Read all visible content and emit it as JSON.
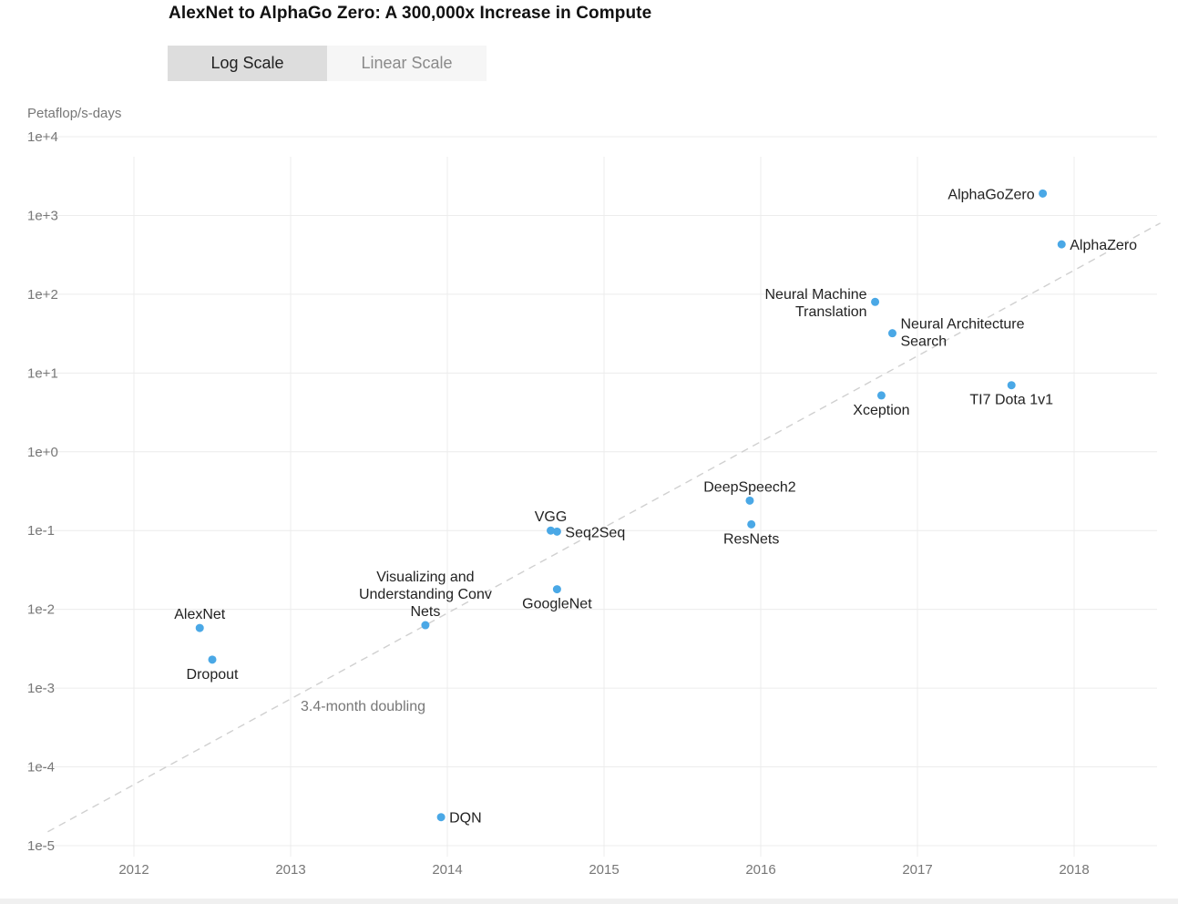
{
  "title": "AlexNet to AlphaGo Zero: A 300,000x Increase in Compute",
  "toggle": {
    "log_label": "Log Scale",
    "linear_label": "Linear Scale",
    "selected": "log"
  },
  "colors": {
    "point": "#4aa8e6",
    "grid": "#ececec",
    "trend": "#d0d0d0"
  },
  "chart_data": {
    "type": "scatter",
    "title": "AlexNet to AlphaGo Zero: A 300,000x Increase in Compute",
    "ylabel": "Petaflop/s-days",
    "xlabel": "",
    "yscale": "log",
    "xlim": [
      2011.4,
      2018.55
    ],
    "ylim": [
      1e-05,
      10000
    ],
    "grid": true,
    "x_ticks": [
      "2012",
      "2013",
      "2014",
      "2015",
      "2016",
      "2017",
      "2018"
    ],
    "y_ticks": [
      "1e+4",
      "1e+3",
      "1e+2",
      "1e+1",
      "1e+0",
      "1e-1",
      "1e-2",
      "1e-3",
      "1e-4",
      "1e-5"
    ],
    "points": [
      {
        "name": "AlexNet",
        "x": 2012.42,
        "y": 0.0058,
        "label_lines": [
          "AlexNet"
        ],
        "label_pos": "above"
      },
      {
        "name": "Dropout",
        "x": 2012.5,
        "y": 0.0023,
        "label_lines": [
          "Dropout"
        ],
        "label_pos": "below"
      },
      {
        "name": "Visualizing and Understanding Conv Nets",
        "x": 2013.86,
        "y": 0.0063,
        "label_lines": [
          "Visualizing and",
          "Understanding Conv",
          "Nets"
        ],
        "label_pos": "above"
      },
      {
        "name": "DQN",
        "x": 2013.96,
        "y": 2.3e-05,
        "label_lines": [
          "DQN"
        ],
        "label_pos": "right"
      },
      {
        "name": "VGG",
        "x": 2014.66,
        "y": 0.1,
        "label_lines": [
          "VGG"
        ],
        "label_pos": "above"
      },
      {
        "name": "Seq2Seq",
        "x": 2014.7,
        "y": 0.097,
        "label_lines": [
          "Seq2Seq"
        ],
        "label_pos": "right"
      },
      {
        "name": "GoogleNet",
        "x": 2014.7,
        "y": 0.018,
        "label_lines": [
          "GoogleNet"
        ],
        "label_pos": "below"
      },
      {
        "name": "DeepSpeech2",
        "x": 2015.93,
        "y": 0.24,
        "label_lines": [
          "DeepSpeech2"
        ],
        "label_pos": "above"
      },
      {
        "name": "ResNets",
        "x": 2015.94,
        "y": 0.12,
        "label_lines": [
          "ResNets"
        ],
        "label_pos": "below"
      },
      {
        "name": "Neural Machine Translation",
        "x": 2016.73,
        "y": 80,
        "label_lines": [
          "Neural Machine",
          "Translation"
        ],
        "label_pos": "left"
      },
      {
        "name": "Neural Architecture Search",
        "x": 2016.84,
        "y": 32,
        "label_lines": [
          "Neural Architecture",
          "Search"
        ],
        "label_pos": "right"
      },
      {
        "name": "Xception",
        "x": 2016.77,
        "y": 5.2,
        "label_lines": [
          "Xception"
        ],
        "label_pos": "below"
      },
      {
        "name": "TI7 Dota 1v1",
        "x": 2017.6,
        "y": 7.0,
        "label_lines": [
          "TI7 Dota 1v1"
        ],
        "label_pos": "below"
      },
      {
        "name": "AlphaGoZero",
        "x": 2017.8,
        "y": 1900,
        "label_lines": [
          "AlphaGoZero"
        ],
        "label_pos": "left"
      },
      {
        "name": "AlphaZero",
        "x": 2017.92,
        "y": 430,
        "label_lines": [
          "AlphaZero"
        ],
        "label_pos": "right"
      }
    ],
    "trend": {
      "label": "3.4-month doubling",
      "x": [
        2011.45,
        2018.55
      ],
      "y": [
        1.5e-05,
        800
      ]
    }
  }
}
